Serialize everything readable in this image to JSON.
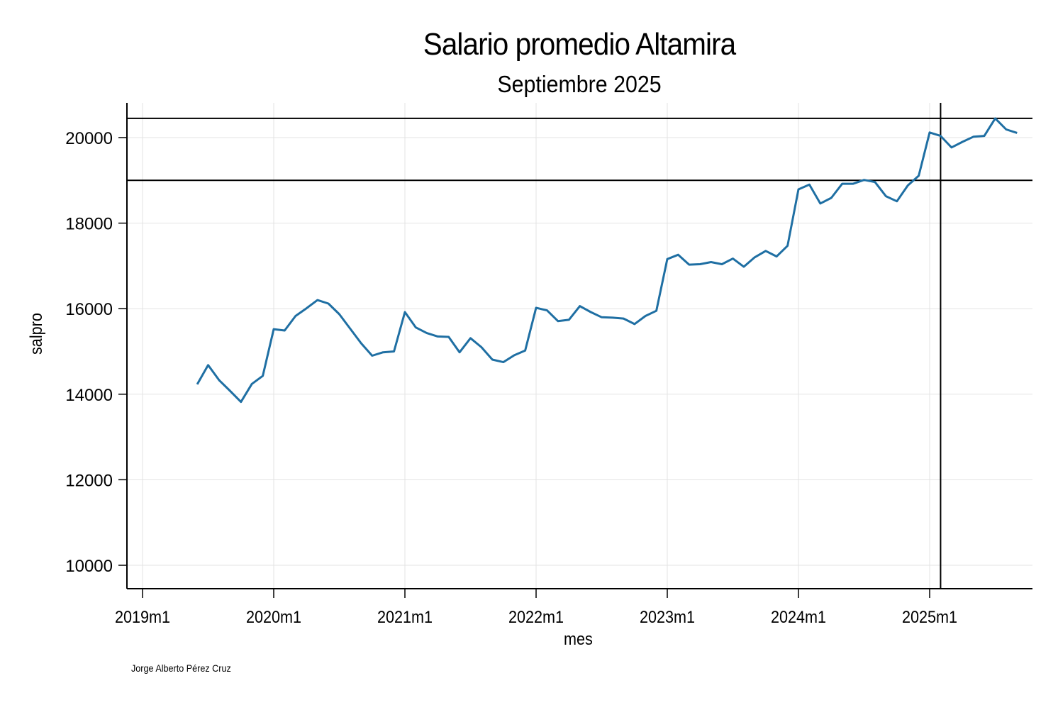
{
  "chart_data": {
    "type": "line",
    "title": "Salario promedio Altamira",
    "subtitle": "Septiembre 2025",
    "xlabel": "mes",
    "ylabel": "salpro",
    "note": "Jorge Alberto Pérez Cruz",
    "x_ticks": [
      "2019m1",
      "2020m1",
      "2021m1",
      "2022m1",
      "2023m1",
      "2024m1",
      "2025m1"
    ],
    "y_ticks": [
      10000,
      12000,
      14000,
      16000,
      18000,
      20000
    ],
    "ylim": [
      9450,
      20800
    ],
    "xlim": [
      "2018m11",
      "2025m10"
    ],
    "grid": true,
    "legend": "none",
    "reference_lines": {
      "horizontal": [
        20450,
        19000
      ],
      "vertical": [
        "2025m2"
      ]
    },
    "series": [
      {
        "name": "salpro",
        "color": "#1f6fa3",
        "x": [
          "2019m6",
          "2019m7",
          "2019m8",
          "2019m9",
          "2019m10",
          "2019m11",
          "2019m12",
          "2020m1",
          "2020m2",
          "2020m3",
          "2020m4",
          "2020m5",
          "2020m6",
          "2020m7",
          "2020m8",
          "2020m9",
          "2020m10",
          "2020m11",
          "2020m12",
          "2021m1",
          "2021m2",
          "2021m3",
          "2021m4",
          "2021m5",
          "2021m6",
          "2021m7",
          "2021m8",
          "2021m9",
          "2021m10",
          "2021m11",
          "2021m12",
          "2022m1",
          "2022m2",
          "2022m3",
          "2022m4",
          "2022m5",
          "2022m6",
          "2022m7",
          "2022m8",
          "2022m9",
          "2022m10",
          "2022m11",
          "2022m12",
          "2023m1",
          "2023m2",
          "2023m3",
          "2023m4",
          "2023m5",
          "2023m6",
          "2023m7",
          "2023m8",
          "2023m9",
          "2023m10",
          "2023m11",
          "2023m12",
          "2024m1",
          "2024m2",
          "2024m3",
          "2024m4",
          "2024m5",
          "2024m6",
          "2024m7",
          "2024m8",
          "2024m9",
          "2024m10",
          "2024m11",
          "2024m12",
          "2025m1",
          "2025m2",
          "2025m3",
          "2025m4",
          "2025m5",
          "2025m6",
          "2025m7",
          "2025m8",
          "2025m9"
        ],
        "values": [
          14230,
          14680,
          14330,
          14080,
          13820,
          14240,
          14430,
          15520,
          15490,
          15830,
          16010,
          16200,
          16120,
          15870,
          15530,
          15190,
          14900,
          14980,
          15000,
          15920,
          15560,
          15430,
          15350,
          15340,
          14980,
          15310,
          15100,
          14810,
          14750,
          14910,
          15020,
          16020,
          15960,
          15710,
          15740,
          16060,
          15920,
          15800,
          15790,
          15770,
          15640,
          15830,
          15950,
          17160,
          17260,
          17030,
          17040,
          17090,
          17040,
          17170,
          16980,
          17200,
          17350,
          17220,
          17470,
          18790,
          18900,
          18460,
          18590,
          18920,
          18920,
          19010,
          18960,
          18630,
          18510,
          18880,
          19110,
          20120,
          20040,
          19770,
          19900,
          20020,
          20040,
          20450,
          20190,
          20110
        ]
      }
    ]
  }
}
